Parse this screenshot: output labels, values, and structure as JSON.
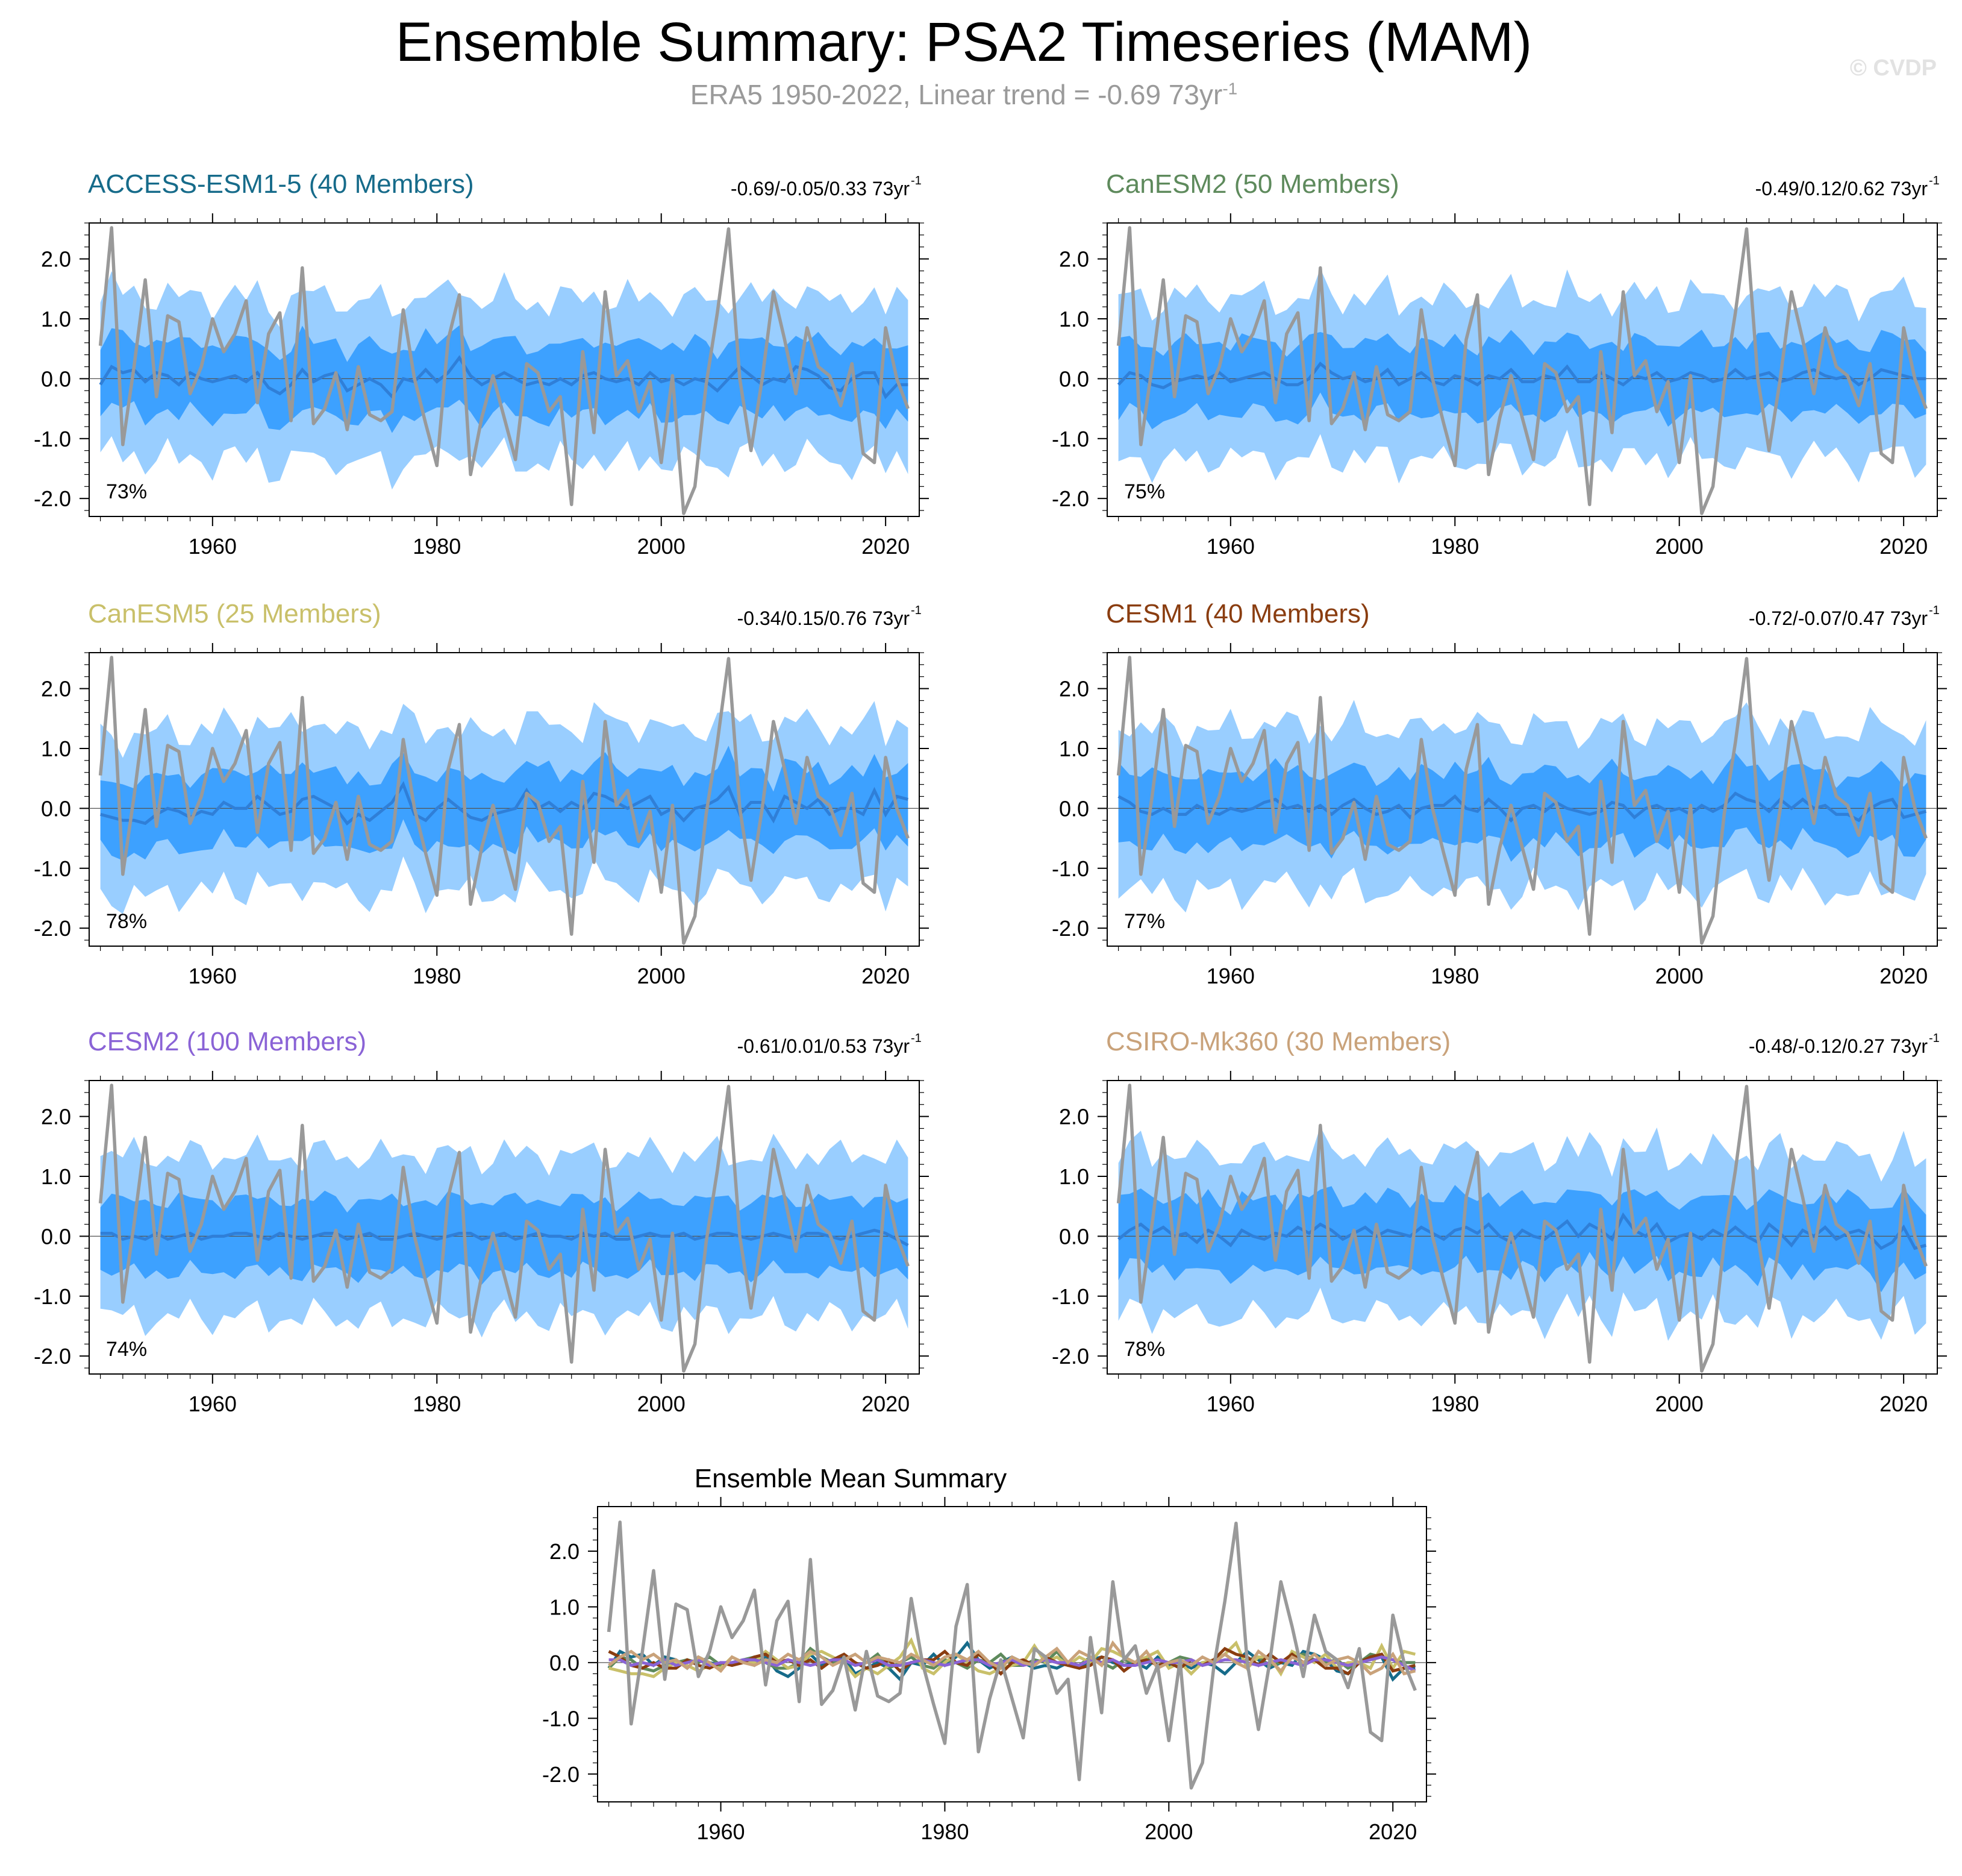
{
  "title": "Ensemble Summary: PSA2 Timeseries (MAM)",
  "subtitle": "ERA5 1950-2022, Linear trend = -0.69 73yr",
  "subtitle_sup": "-1",
  "watermark": "© CVDP",
  "colors": {
    "inner_band": "#3da1ff",
    "outer_band": "#99ceff",
    "ens_mean_line": "#2f7fd8",
    "obs_line": "#999999"
  },
  "chart_data": [
    {
      "type": "area",
      "model": "ACCESS-ESM1-5 (40 Members)",
      "color": "#166b8a",
      "trend_range": "-0.69/-0.05/0.33 73yr",
      "trend_sup": "-1",
      "pct": "73%",
      "xlim": [
        1949,
        2023
      ],
      "ylim": [
        -2.3,
        2.6
      ],
      "yticks": [
        "2.0",
        "1.0",
        "0.0",
        "-1.0",
        "-2.0"
      ],
      "xticks": [
        "1960",
        "1980",
        "2000",
        "2020"
      ]
    },
    {
      "type": "area",
      "model": "CanESM2 (50 Members)",
      "color": "#5e8a5c",
      "trend_range": "-0.49/0.12/0.62 73yr",
      "trend_sup": "-1",
      "pct": "75%",
      "xlim": [
        1949,
        2023
      ],
      "ylim": [
        -2.3,
        2.6
      ],
      "yticks": [
        "2.0",
        "1.0",
        "0.0",
        "-1.0",
        "-2.0"
      ],
      "xticks": [
        "1960",
        "1980",
        "2000",
        "2020"
      ]
    },
    {
      "type": "area",
      "model": "CanESM5 (25 Members)",
      "color": "#c9c06a",
      "trend_range": "-0.34/0.15/0.76 73yr",
      "trend_sup": "-1",
      "pct": "78%",
      "xlim": [
        1949,
        2023
      ],
      "ylim": [
        -2.3,
        2.6
      ],
      "yticks": [
        "2.0",
        "1.0",
        "0.0",
        "-1.0",
        "-2.0"
      ],
      "xticks": [
        "1960",
        "1980",
        "2000",
        "2020"
      ]
    },
    {
      "type": "area",
      "model": "CESM1 (40 Members)",
      "color": "#8a3d10",
      "trend_range": "-0.72/-0.07/0.47 73yr",
      "trend_sup": "-1",
      "pct": "77%",
      "xlim": [
        1949,
        2023
      ],
      "ylim": [
        -2.3,
        2.6
      ],
      "yticks": [
        "2.0",
        "1.0",
        "0.0",
        "-1.0",
        "-2.0"
      ],
      "xticks": [
        "1960",
        "1980",
        "2000",
        "2020"
      ]
    },
    {
      "type": "area",
      "model": "CESM2 (100 Members)",
      "color": "#8a63d6",
      "trend_range": "-0.61/0.01/0.53 73yr",
      "trend_sup": "-1",
      "pct": "74%",
      "xlim": [
        1949,
        2023
      ],
      "ylim": [
        -2.3,
        2.6
      ],
      "yticks": [
        "2.0",
        "1.0",
        "0.0",
        "-1.0",
        "-2.0"
      ],
      "xticks": [
        "1960",
        "1980",
        "2000",
        "2020"
      ]
    },
    {
      "type": "area",
      "model": "CSIRO-Mk360 (30 Members)",
      "color": "#c9a27a",
      "trend_range": "-0.48/-0.12/0.27 73yr",
      "trend_sup": "-1",
      "pct": "78%",
      "xlim": [
        1949,
        2023
      ],
      "ylim": [
        -2.3,
        2.6
      ],
      "yticks": [
        "2.0",
        "1.0",
        "0.0",
        "-1.0",
        "-2.0"
      ],
      "xticks": [
        "1960",
        "1980",
        "2000",
        "2020"
      ]
    },
    {
      "type": "line",
      "model": "Ensemble Mean Summary",
      "xlim": [
        1949,
        2023
      ],
      "ylim": [
        -2.5,
        2.8
      ],
      "yticks": [
        "2.0",
        "1.0",
        "0.0",
        "-1.0",
        "-2.0"
      ],
      "xticks": [
        "1960",
        "1980",
        "2000",
        "2020"
      ],
      "series_colors": [
        "#166b8a",
        "#5e8a5c",
        "#c9c06a",
        "#8a3d10",
        "#8a63d6",
        "#c9a27a"
      ]
    }
  ],
  "shared_series": {
    "years_start": 1950,
    "obs": [
      0.55,
      2.52,
      -1.1,
      0.2,
      1.65,
      -0.3,
      1.05,
      0.95,
      -0.25,
      0.2,
      1.0,
      0.45,
      0.75,
      1.3,
      -0.4,
      0.75,
      1.1,
      -0.7,
      1.85,
      -0.75,
      -0.5,
      0.1,
      -0.85,
      0.2,
      -0.6,
      -0.7,
      -0.55,
      1.15,
      0.0,
      -0.75,
      -1.45,
      0.65,
      1.4,
      -1.6,
      -0.65,
      0.05,
      -0.65,
      -1.35,
      0.25,
      0.1,
      -0.55,
      -0.3,
      -2.1,
      0.45,
      -0.9,
      1.45,
      0.05,
      0.3,
      -0.55,
      -0.05,
      -1.4,
      0.05,
      -2.25,
      -1.8,
      -0.1,
      1.1,
      2.5,
      0.0,
      -1.2,
      0.0,
      1.45,
      0.65,
      -0.25,
      0.85,
      0.2,
      0.05,
      -0.45,
      0.25,
      -1.25,
      -1.4,
      0.85,
      0.0,
      -0.5
    ],
    "mean": [
      [
        -0.1,
        0.2,
        0.1,
        0.15,
        -0.05,
        0.1,
        0.05,
        -0.1,
        0.1,
        0.0,
        -0.05,
        0.0,
        0.05,
        -0.05,
        0.1,
        -0.15,
        -0.25,
        -0.1,
        0.15,
        -0.05,
        0.05,
        0.1,
        -0.2,
        -0.1,
        0.0,
        -0.1,
        -0.3,
        0.0,
        -0.05,
        0.15,
        -0.05,
        0.1,
        0.35,
        0.05,
        -0.1,
        0.0,
        0.1,
        0.0,
        -0.1,
        -0.05,
        -0.1,
        0.0,
        -0.1,
        0.05,
        0.1,
        0.0,
        -0.05,
        0.0,
        -0.1,
        0.1,
        -0.05,
        0.0,
        -0.1,
        0.0,
        -0.05,
        -0.2,
        0.0,
        0.2,
        0.05,
        -0.1,
        0.0,
        -0.05,
        0.2,
        0.15,
        0.05,
        -0.15,
        -0.2,
        0.0,
        0.1,
        0.1,
        -0.3,
        -0.1,
        -0.1
      ],
      [
        -0.1,
        0.1,
        0.05,
        -0.1,
        -0.15,
        -0.05,
        0.0,
        0.05,
        0.0,
        0.1,
        -0.05,
        0.0,
        0.05,
        0.1,
        0.0,
        -0.1,
        -0.1,
        0.0,
        0.25,
        0.1,
        0.0,
        0.05,
        -0.05,
        0.0,
        0.15,
        -0.1,
        0.0,
        0.1,
        -0.05,
        -0.1,
        0.05,
        0.0,
        -0.1,
        0.05,
        0.0,
        0.15,
        -0.05,
        -0.05,
        0.05,
        0.0,
        0.2,
        -0.05,
        -0.05,
        0.1,
        0.0,
        -0.1,
        0.05,
        0.0,
        0.1,
        -0.05,
        0.0,
        0.1,
        0.05,
        -0.05,
        0.0,
        0.15,
        0.0,
        0.05,
        0.1,
        -0.05,
        0.0,
        0.1,
        0.15,
        0.05,
        0.0,
        0.05,
        -0.1,
        0.0,
        0.15,
        0.1,
        0.05,
        0.0,
        0.0
      ],
      [
        -0.1,
        -0.15,
        -0.2,
        -0.2,
        -0.25,
        -0.1,
        0.0,
        -0.05,
        -0.15,
        -0.05,
        -0.1,
        0.1,
        0.0,
        0.0,
        0.2,
        0.05,
        -0.1,
        -0.05,
        0.15,
        0.2,
        0.1,
        0.0,
        -0.25,
        -0.1,
        -0.2,
        -0.05,
        0.1,
        0.4,
        -0.1,
        -0.2,
        0.0,
        0.15,
        0.0,
        -0.15,
        -0.2,
        -0.1,
        -0.05,
        0.0,
        0.3,
        0.0,
        0.1,
        -0.05,
        0.1,
        0.0,
        0.25,
        0.2,
        0.1,
        0.0,
        0.1,
        0.2,
        -0.1,
        0.0,
        -0.2,
        0.0,
        0.05,
        0.15,
        0.35,
        -0.1,
        0.1,
        0.1,
        -0.2,
        0.2,
        0.1,
        0.0,
        0.15,
        -0.1,
        0.0,
        0.0,
        -0.1,
        0.3,
        -0.1,
        0.2,
        0.15
      ],
      [
        0.2,
        0.1,
        -0.05,
        -0.1,
        0.0,
        -0.1,
        -0.1,
        0.05,
        -0.05,
        -0.1,
        0.0,
        -0.05,
        0.0,
        0.1,
        0.15,
        0.0,
        0.05,
        -0.05,
        0.05,
        -0.1,
        0.05,
        0.15,
        0.0,
        -0.1,
        -0.05,
        0.05,
        -0.15,
        0.0,
        0.05,
        0.05,
        0.2,
        0.0,
        -0.05,
        0.15,
        0.0,
        -0.2,
        0.0,
        0.05,
        -0.05,
        0.1,
        0.0,
        -0.05,
        -0.1,
        -0.05,
        0.1,
        0.05,
        -0.15,
        0.0,
        0.05,
        -0.05,
        0.0,
        -0.1,
        0.05,
        -0.05,
        0.05,
        0.25,
        0.15,
        0.1,
        -0.05,
        0.15,
        0.0,
        0.15,
        0.0,
        0.05,
        -0.1,
        -0.1,
        -0.2,
        0.0,
        0.1,
        0.15,
        -0.15,
        -0.1,
        -0.05
      ],
      [
        0.05,
        0.05,
        -0.05,
        0.0,
        -0.05,
        0.05,
        -0.05,
        0.0,
        0.05,
        -0.05,
        0.0,
        0.0,
        0.05,
        0.05,
        0.0,
        -0.05,
        0.05,
        0.0,
        -0.05,
        0.0,
        0.05,
        0.05,
        -0.05,
        0.0,
        0.05,
        -0.05,
        -0.05,
        0.0,
        0.05,
        0.0,
        -0.05,
        0.0,
        0.05,
        0.05,
        -0.05,
        0.0,
        0.05,
        -0.05,
        0.0,
        0.05,
        0.0,
        0.0,
        -0.05,
        0.05,
        0.0,
        0.05,
        -0.05,
        -0.05,
        0.0,
        0.05,
        0.0,
        0.0,
        0.05,
        -0.05,
        0.0,
        0.05,
        0.05,
        0.0,
        -0.05,
        0.0,
        0.05,
        0.0,
        -0.05,
        0.05,
        0.05,
        0.0,
        -0.05,
        0.0,
        0.05,
        0.1,
        0.05,
        -0.05,
        -0.15
      ],
      [
        -0.05,
        0.1,
        0.2,
        0.05,
        0.15,
        0.0,
        0.05,
        -0.1,
        0.1,
        0.0,
        -0.15,
        0.1,
        0.0,
        -0.05,
        0.05,
        0.0,
        0.15,
        0.05,
        0.2,
        0.1,
        -0.05,
        0.05,
        0.15,
        0.0,
        0.1,
        0.05,
        0.0,
        0.15,
        0.05,
        -0.05,
        0.1,
        0.15,
        0.05,
        0.2,
        0.0,
        -0.1,
        0.1,
        0.0,
        -0.05,
        0.1,
        0.25,
        0.0,
        0.2,
        0.1,
        -0.05,
        0.35,
        0.1,
        0.0,
        0.2,
        -0.1,
        0.0,
        0.05,
        -0.05,
        0.1,
        0.0,
        0.15,
        0.0,
        -0.1,
        0.2,
        0.05,
        -0.15,
        0.1,
        0.0,
        0.15,
        -0.05,
        0.05,
        0.1,
        0.0,
        -0.2,
        -0.1,
        0.15,
        -0.2,
        -0.15
      ]
    ],
    "inner_half_width": 0.6,
    "outer_half_width": 1.35
  }
}
